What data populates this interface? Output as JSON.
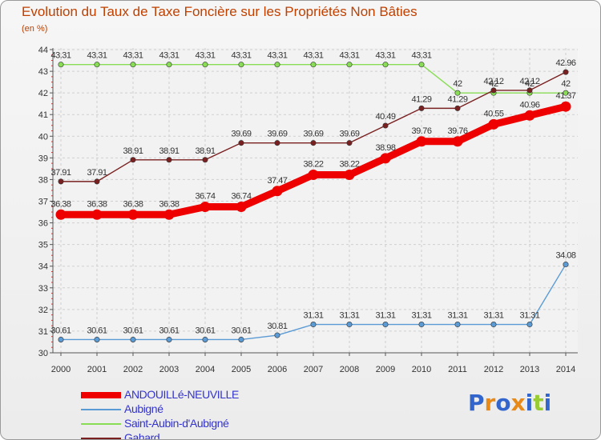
{
  "title": "Evolution du Taux de Taxe Foncière sur les Propriétés Non Bâties",
  "subtitle": "(en %)",
  "logo": {
    "text": "Proxiti",
    "colors": [
      "#3366cc",
      "#e88a1a",
      "#3366cc",
      "#e88a1a",
      "#3366cc",
      "#99cc33",
      "#3366cc"
    ]
  },
  "chart_data": {
    "type": "line",
    "x": [
      "2000",
      "2001",
      "2002",
      "2003",
      "2004",
      "2005",
      "2006",
      "2007",
      "2008",
      "2009",
      "2010",
      "2011",
      "2012",
      "2013",
      "2014"
    ],
    "ylim": [
      30,
      44
    ],
    "yticks": [
      "30",
      "31",
      "32",
      "33",
      "34",
      "35",
      "36",
      "37",
      "38",
      "39",
      "40",
      "41",
      "42",
      "43",
      "44"
    ],
    "grid": true,
    "legend_position": "bottom-left",
    "series": [
      {
        "name": "ANDOUILLé-NEUVILLE",
        "color": "#ee0000",
        "values": [
          36.38,
          36.38,
          36.38,
          36.38,
          36.74,
          36.74,
          37.47,
          38.22,
          38.22,
          38.98,
          39.76,
          39.76,
          40.55,
          40.96,
          41.37
        ],
        "labels": [
          "36.38",
          "36.38",
          "36.38",
          "36.38",
          "36.74",
          "36.74",
          "37.47",
          "38.22",
          "38.22",
          "38.98",
          "39.76",
          "39.76",
          "40.55",
          "40.96",
          "41.37"
        ]
      },
      {
        "name": "Aubigné",
        "color": "#5b9bd5",
        "values": [
          30.61,
          30.61,
          30.61,
          30.61,
          30.61,
          30.61,
          30.81,
          31.31,
          31.31,
          31.31,
          31.31,
          31.31,
          31.31,
          31.31,
          34.08
        ],
        "labels": [
          "30.61",
          "30.61",
          "30.61",
          "30.61",
          "30.61",
          "30.61",
          "30.81",
          "31.31",
          "31.31",
          "31.31",
          "31.31",
          "31.31",
          "31.31",
          "31.31",
          "34.08"
        ]
      },
      {
        "name": "Saint-Aubin-d'Aubigné",
        "color": "#88dd55",
        "values": [
          43.31,
          43.31,
          43.31,
          43.31,
          43.31,
          43.31,
          43.31,
          43.31,
          43.31,
          43.31,
          43.31,
          42,
          42,
          42,
          42
        ],
        "labels": [
          "43.31",
          "43.31",
          "43.31",
          "43.31",
          "43.31",
          "43.31",
          "43.31",
          "43.31",
          "43.31",
          "43.31",
          "43.31",
          "42",
          "42",
          "42",
          "42"
        ]
      },
      {
        "name": "Gahard",
        "color": "#7a2020",
        "values": [
          37.91,
          37.91,
          38.91,
          38.91,
          38.91,
          39.69,
          39.69,
          39.69,
          39.69,
          40.49,
          41.29,
          41.29,
          42.12,
          42.12,
          42.96
        ],
        "labels": [
          "37.91",
          "37.91",
          "38.91",
          "38.91",
          "38.91",
          "39.69",
          "39.69",
          "39.69",
          "39.69",
          "40.49",
          "41.29",
          "41.29",
          "42.12",
          "42.12",
          "42.96"
        ]
      }
    ]
  }
}
